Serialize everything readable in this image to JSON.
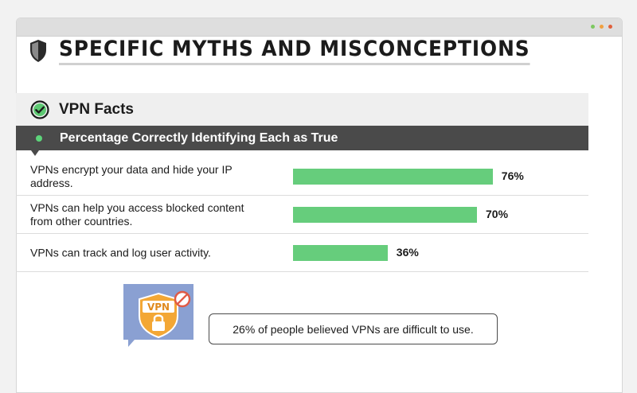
{
  "window": {
    "dots": [
      {
        "name": "green-dot",
        "color": "#7cc860"
      },
      {
        "name": "orange-dot",
        "color": "#f0a040"
      },
      {
        "name": "red-dot",
        "color": "#e0603c"
      }
    ]
  },
  "header": {
    "title": "SPECIFIC MYTHS AND MISCONCEPTIONS",
    "icon": "shield-icon"
  },
  "section": {
    "title": "VPN Facts",
    "icon": "check-circle-icon",
    "subtitle": "Percentage Correctly Identifying Each as True"
  },
  "chart_data": {
    "type": "bar",
    "orientation": "horizontal",
    "categories": [
      "VPNs encrypt your data and hide your IP address.",
      "VPNs can help you access blocked content from other countries.",
      "VPNs can track and log user activity."
    ],
    "values": [
      76,
      70,
      36
    ],
    "value_labels": [
      "76%",
      "70%",
      "36%"
    ],
    "title": "Percentage Correctly Identifying Each as True",
    "xlim": [
      0,
      100
    ],
    "bar_color": "#66cd7c",
    "grid": false
  },
  "callout": {
    "text": "26% of people believed VPNs are difficult to use.",
    "badge_text": "VPN",
    "icon": "vpn-lock-icon"
  }
}
